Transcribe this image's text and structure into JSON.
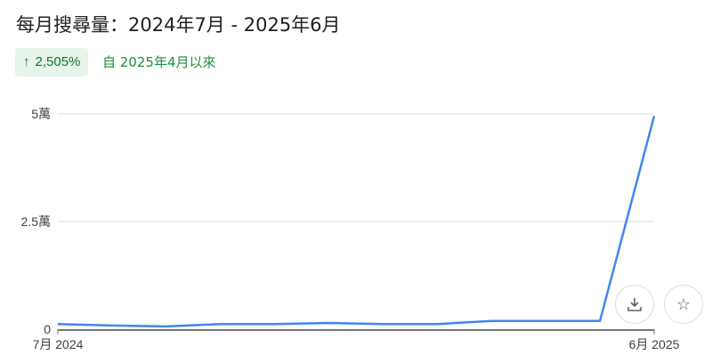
{
  "header": {
    "title": "每月搜尋量：2024年7月 - 2025年6月"
  },
  "change": {
    "arrow_icon": "arrow-up-icon",
    "percent": "2,505%",
    "since": "自 2025年4月以來",
    "color": "#137333"
  },
  "actions": {
    "download_icon": "download-icon",
    "star_icon": "star-icon"
  },
  "chart_data": {
    "type": "line",
    "x": [
      "2024-07",
      "2024-08",
      "2024-09",
      "2024-10",
      "2024-11",
      "2024-12",
      "2025-01",
      "2025-02",
      "2025-03",
      "2025-04",
      "2025-05",
      "2025-06"
    ],
    "values": [
      1200,
      850,
      650,
      1200,
      1200,
      1450,
      1200,
      1200,
      1900,
      1900,
      1900,
      49500
    ],
    "xtick_labels": [
      "7月 2024",
      "6月 2025"
    ],
    "ytick_labels": [
      "0",
      "2.5萬",
      "5萬"
    ],
    "yticks": [
      0,
      25000,
      50000
    ],
    "ylim": [
      0,
      50000
    ],
    "grid": true,
    "line_color": "#4285f4"
  }
}
